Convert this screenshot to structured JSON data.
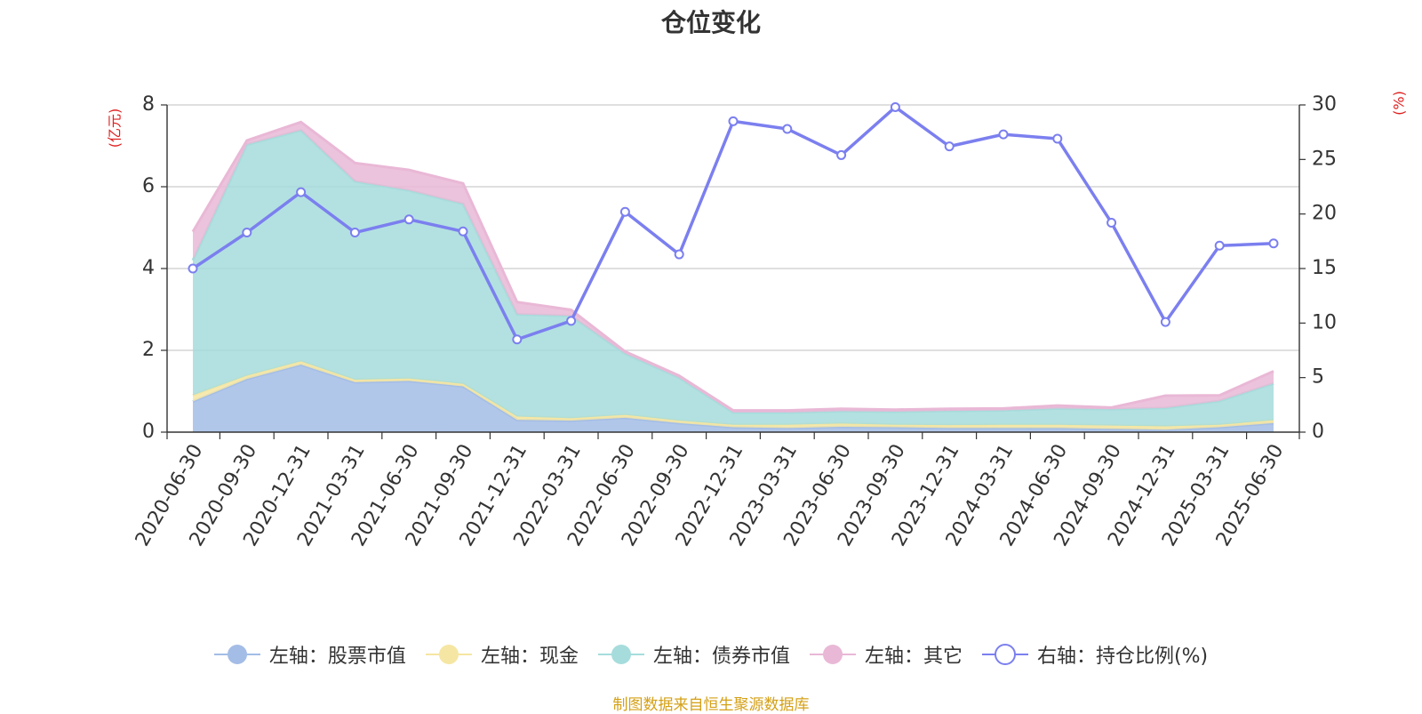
{
  "chart_data": {
    "type": "area",
    "title": "仓位变化",
    "left_axis_unit": "(亿元)",
    "right_axis_unit": "(%)",
    "ylim_left": [
      0,
      8
    ],
    "left_ticks": [
      0,
      2,
      4,
      6,
      8
    ],
    "ylim_right": [
      0,
      30
    ],
    "right_ticks": [
      0,
      5,
      10,
      15,
      20,
      25,
      30
    ],
    "grid": true,
    "legend_position": "bottom",
    "categories": [
      "2020-06-30",
      "2020-09-30",
      "2020-12-31",
      "2021-03-31",
      "2021-06-30",
      "2021-09-30",
      "2021-12-31",
      "2022-03-31",
      "2022-06-30",
      "2022-09-30",
      "2022-12-31",
      "2023-03-31",
      "2023-06-30",
      "2023-09-30",
      "2023-12-31",
      "2024-03-31",
      "2024-06-30",
      "2024-09-30",
      "2024-12-31",
      "2025-03-31",
      "2025-06-30"
    ],
    "stacked_series": [
      {
        "name": "左轴：股票市值",
        "axis": "left",
        "color": "#a3bde6",
        "values": [
          0.75,
          1.3,
          1.65,
          1.22,
          1.25,
          1.12,
          0.3,
          0.28,
          0.35,
          0.22,
          0.12,
          0.1,
          0.13,
          0.12,
          0.1,
          0.1,
          0.1,
          0.08,
          0.06,
          0.12,
          0.22
        ]
      },
      {
        "name": "左轴：现金",
        "axis": "left",
        "color": "#f5e6a3",
        "values": [
          0.15,
          0.08,
          0.08,
          0.06,
          0.06,
          0.06,
          0.08,
          0.06,
          0.07,
          0.06,
          0.06,
          0.08,
          0.08,
          0.06,
          0.07,
          0.08,
          0.08,
          0.08,
          0.08,
          0.06,
          0.07
        ]
      },
      {
        "name": "左轴：债券市值",
        "axis": "left",
        "color": "#a6dcdc",
        "values": [
          3.3,
          5.65,
          5.65,
          4.85,
          4.6,
          4.4,
          2.5,
          2.5,
          1.5,
          1.05,
          0.3,
          0.3,
          0.3,
          0.32,
          0.35,
          0.35,
          0.4,
          0.4,
          0.45,
          0.58,
          0.9
        ]
      },
      {
        "name": "左轴：其它",
        "axis": "left",
        "color": "#e9b8d6",
        "values": [
          0.7,
          0.1,
          0.2,
          0.45,
          0.5,
          0.5,
          0.3,
          0.15,
          0.05,
          0.05,
          0.05,
          0.05,
          0.06,
          0.05,
          0.05,
          0.05,
          0.07,
          0.04,
          0.3,
          0.14,
          0.3
        ]
      }
    ],
    "line_series": [
      {
        "name": "右轴：持仓比例(%)",
        "axis": "right",
        "color": "#7b7fef",
        "values": [
          15.0,
          18.3,
          22.0,
          18.3,
          19.5,
          18.4,
          8.5,
          10.2,
          20.2,
          16.3,
          28.5,
          27.8,
          25.4,
          29.8,
          26.2,
          27.3,
          26.9,
          19.2,
          10.1,
          17.1,
          17.3
        ]
      }
    ]
  },
  "source_note": "制图数据来自恒生聚源数据库"
}
